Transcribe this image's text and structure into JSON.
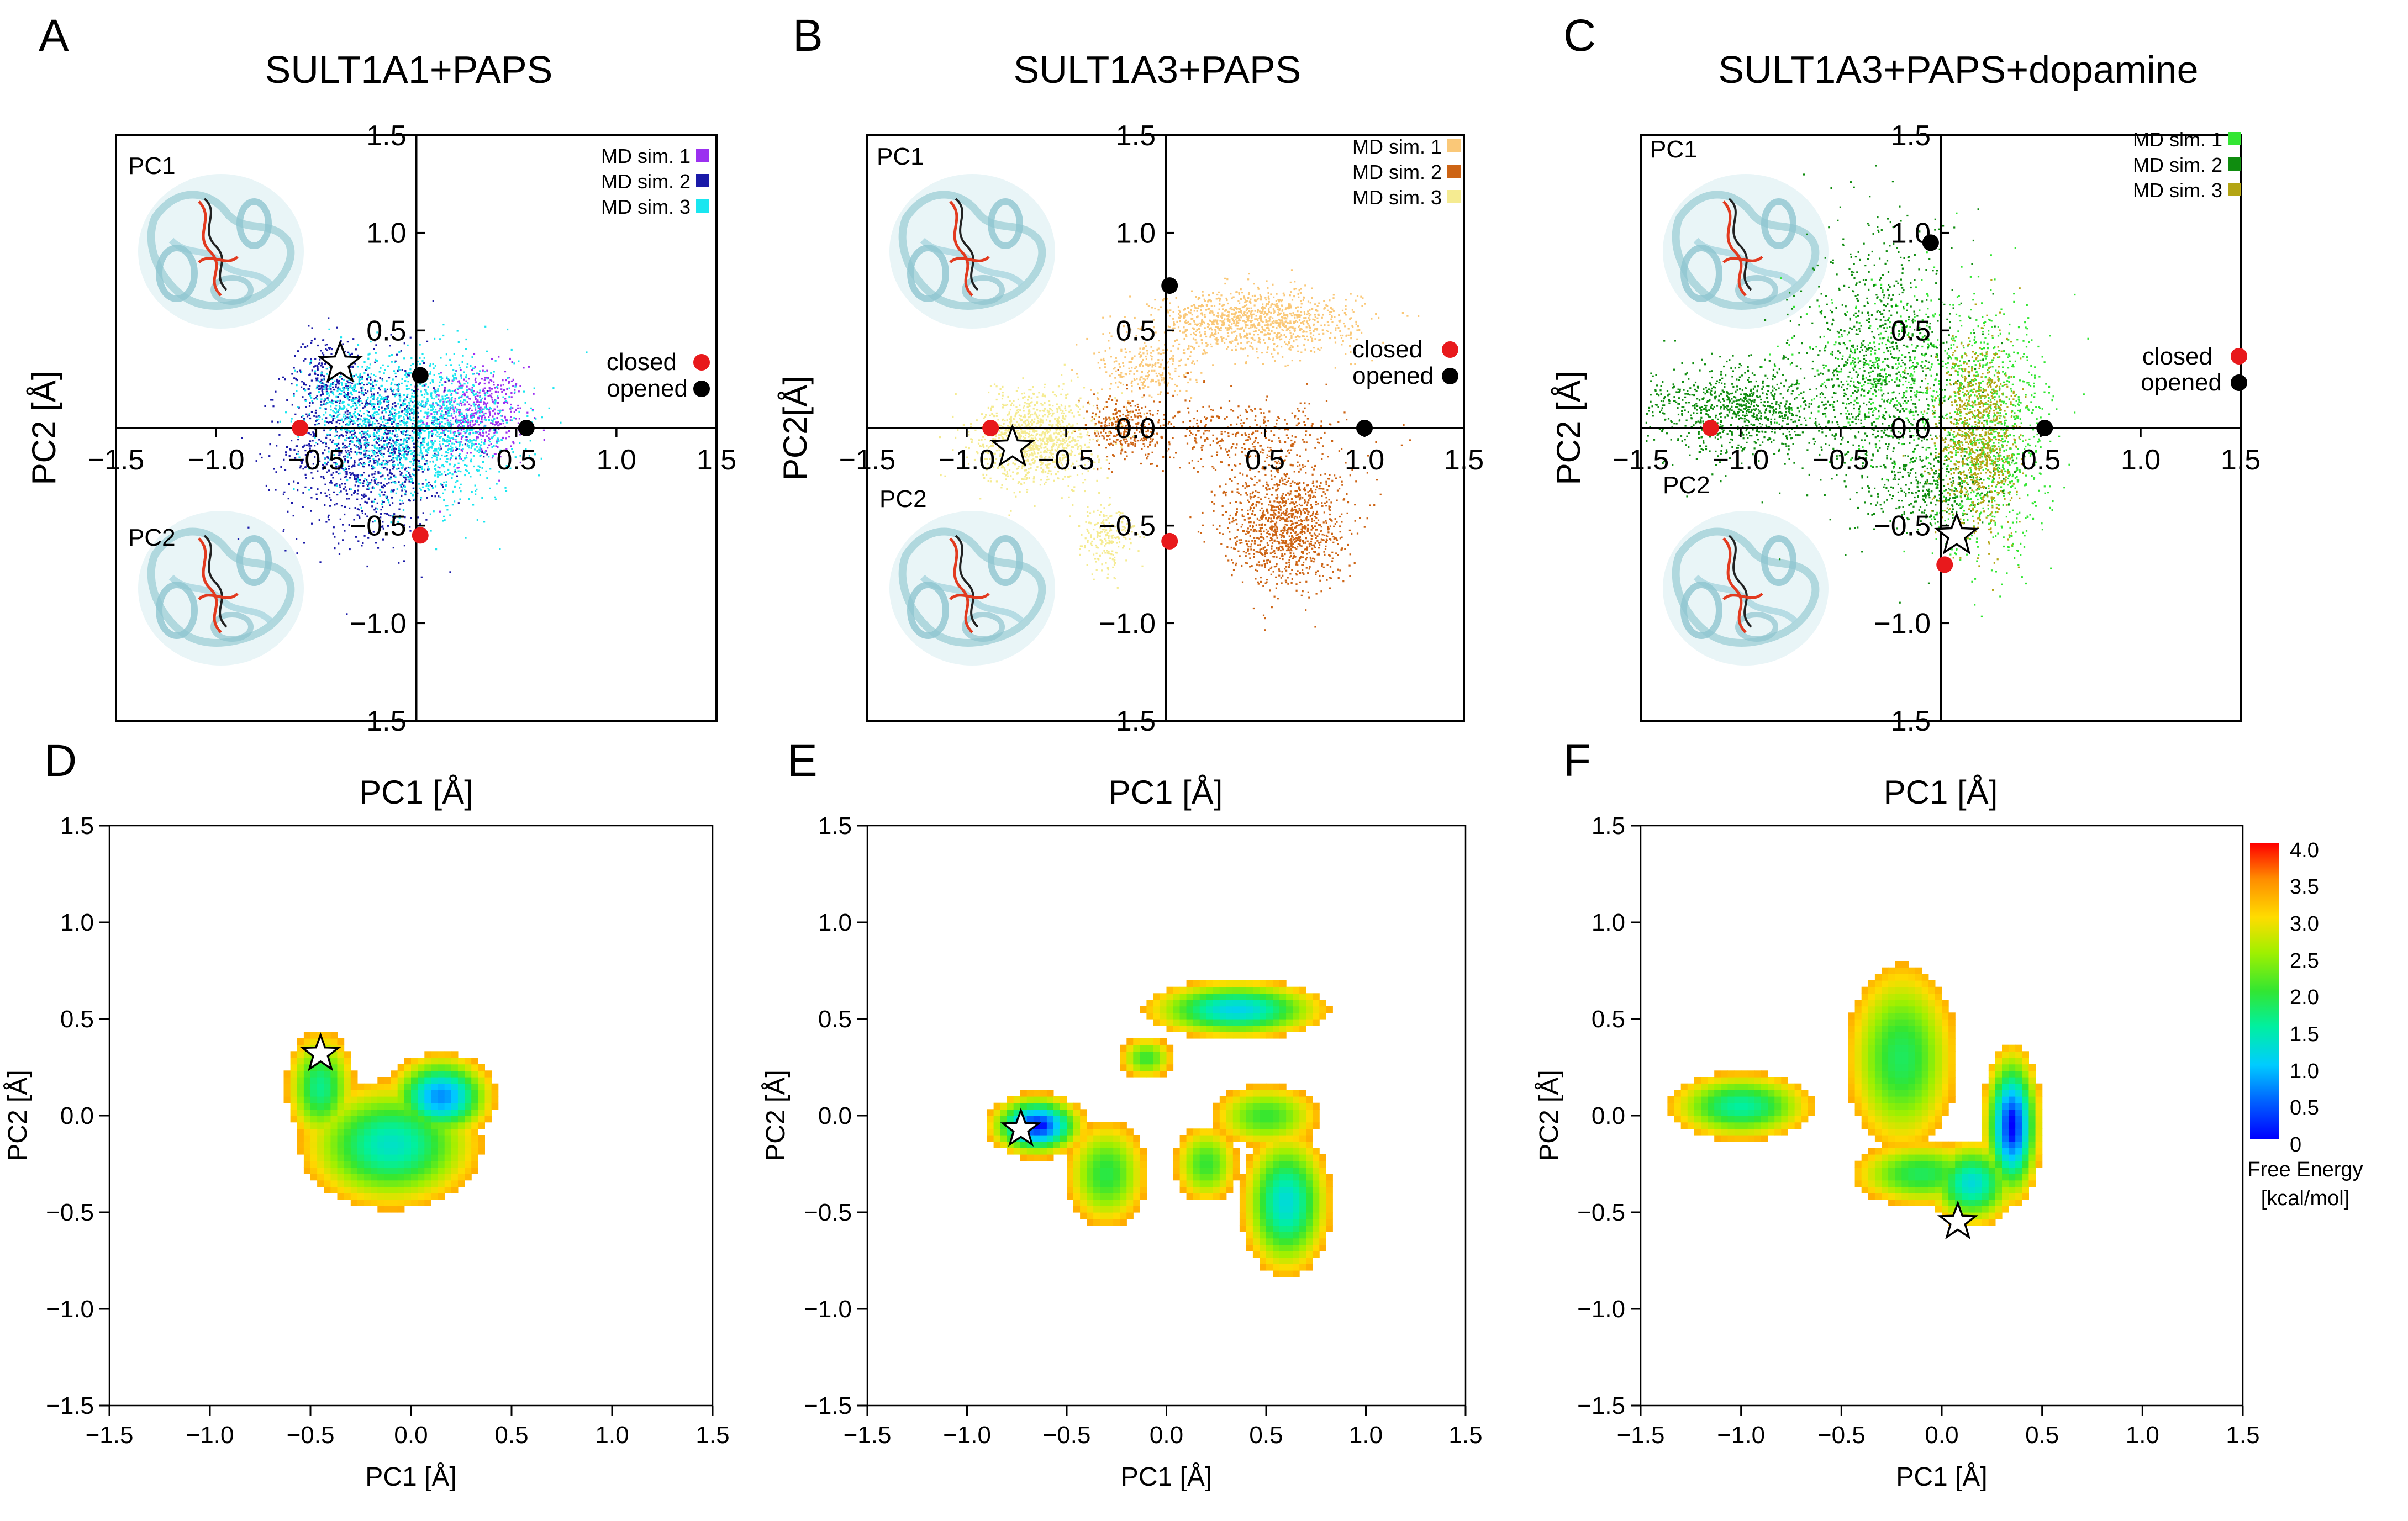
{
  "figure": {
    "panels_top": [
      {
        "letter": "A",
        "title": "SULT1A1+PAPS",
        "inset_top": "PC1",
        "inset_bottom": "PC2",
        "xlabel": "PC1 [Å]",
        "ylabel": "PC2 [Å]"
      },
      {
        "letter": "B",
        "title": "SULT1A3+PAPS",
        "inset_top": "PC1",
        "inset_bottom": "PC2",
        "xlabel": "PC1 [Å]",
        "ylabel": "PC2[Å]"
      },
      {
        "letter": "C",
        "title": "SULT1A3+PAPS+dopamine",
        "inset_top": "PC1",
        "inset_bottom": "PC2",
        "xlabel": "PC1 [Å]",
        "ylabel": "PC2 [Å]"
      }
    ],
    "panels_bottom": [
      {
        "letter": "D",
        "xlabel": "PC1 [Å]",
        "ylabel": "PC2 [Å]"
      },
      {
        "letter": "E",
        "xlabel": "PC1 [Å]",
        "ylabel": "PC2 [Å]"
      },
      {
        "letter": "F",
        "xlabel": "PC1 [Å]",
        "ylabel": "PC2 [Å]"
      }
    ],
    "state_legend": {
      "closed": "closed",
      "opened": "opened",
      "closed_color": "#e8191c",
      "opened_color": "#000000"
    },
    "colorbar": {
      "title_line1": "Free Energy",
      "title_line2": "[kcal/mol]",
      "ticks": [
        "4.0",
        "3.5",
        "3.0",
        "2.5",
        "2.0",
        "1.5",
        "1.0",
        "0.5",
        "0"
      ]
    }
  },
  "chart_data": [
    {
      "panel": "A",
      "type": "scatter",
      "title": "SULT1A1+PAPS",
      "xlabel": "PC1 [Å]",
      "ylabel": "PC2 [Å]",
      "xlim": [
        -1.5,
        1.5
      ],
      "ylim": [
        -1.5,
        1.5
      ],
      "xticks": [
        "−1.5",
        "−1.0",
        "−0.5",
        "0.0",
        "0.5",
        "1.0",
        "1.5"
      ],
      "yticks": [
        "1.5",
        "1.0",
        "0.5",
        "−0.5",
        "−1.0",
        "−1.5"
      ],
      "series": [
        {
          "name": "MD sim. 1",
          "color": "#9b30f0",
          "clusters": [
            {
              "x": 0.3,
              "y": 0.08,
              "sx": 0.12,
              "sy": 0.12,
              "n": 500
            }
          ]
        },
        {
          "name": "MD sim. 2",
          "color": "#1a1aa8",
          "clusters": [
            {
              "x": -0.25,
              "y": -0.1,
              "sx": 0.2,
              "sy": 0.22,
              "n": 1100
            },
            {
              "x": -0.45,
              "y": 0.28,
              "sx": 0.08,
              "sy": 0.1,
              "n": 200
            }
          ]
        },
        {
          "name": "MD sim. 3",
          "color": "#19e6f0",
          "clusters": [
            {
              "x": 0.05,
              "y": 0.0,
              "sx": 0.22,
              "sy": 0.18,
              "n": 1400
            },
            {
              "x": -0.35,
              "y": 0.15,
              "sx": 0.1,
              "sy": 0.12,
              "n": 300
            }
          ]
        }
      ],
      "closed": [
        {
          "x": -0.58,
          "y": 0.0
        },
        {
          "x": 0.02,
          "y": -0.55
        }
      ],
      "opened": [
        {
          "x": 0.02,
          "y": 0.27
        },
        {
          "x": 0.55,
          "y": 0.0
        }
      ],
      "star": {
        "x": -0.38,
        "y": 0.33
      }
    },
    {
      "panel": "B",
      "type": "scatter",
      "title": "SULT1A3+PAPS",
      "xlabel": "PC1 [Å]",
      "ylabel": "PC2[Å]",
      "xlim": [
        -1.5,
        1.5
      ],
      "ylim": [
        -1.5,
        1.5
      ],
      "xticks": [
        "−1.5",
        "−1.0",
        "−0.5",
        "0.0",
        "0.5",
        "1.0",
        "1.5"
      ],
      "yticks": [
        "1.5",
        "1.0",
        "0.5",
        "0.0",
        "−0.5",
        "−1.0",
        "−1.5"
      ],
      "series": [
        {
          "name": "MD sim. 1",
          "color": "#fac878",
          "clusters": [
            {
              "x": 0.45,
              "y": 0.55,
              "sx": 0.25,
              "sy": 0.08,
              "n": 1100
            },
            {
              "x": -0.1,
              "y": 0.3,
              "sx": 0.12,
              "sy": 0.08,
              "n": 250
            }
          ]
        },
        {
          "name": "MD sim. 2",
          "color": "#cd6414",
          "clusters": [
            {
              "x": 0.6,
              "y": -0.5,
              "sx": 0.15,
              "sy": 0.15,
              "n": 1100
            },
            {
              "x": -0.2,
              "y": 0.0,
              "sx": 0.1,
              "sy": 0.08,
              "n": 300
            },
            {
              "x": 0.4,
              "y": -0.05,
              "sx": 0.25,
              "sy": 0.1,
              "n": 400
            }
          ]
        },
        {
          "name": "MD sim. 3",
          "color": "#f5eb91",
          "clusters": [
            {
              "x": -0.65,
              "y": -0.05,
              "sx": 0.15,
              "sy": 0.12,
              "n": 1100
            },
            {
              "x": -0.3,
              "y": -0.55,
              "sx": 0.07,
              "sy": 0.09,
              "n": 200
            }
          ]
        }
      ],
      "closed": [
        {
          "x": -0.88,
          "y": 0.0
        },
        {
          "x": 0.02,
          "y": -0.58
        }
      ],
      "opened": [
        {
          "x": 0.02,
          "y": 0.73
        },
        {
          "x": 1.0,
          "y": 0.0
        }
      ],
      "star": {
        "x": -0.77,
        "y": -0.1
      }
    },
    {
      "panel": "C",
      "type": "scatter",
      "title": "SULT1A3+PAPS+dopamine",
      "xlabel": "PC1 [Å]",
      "ylabel": "PC2 [Å]",
      "xlim": [
        -1.5,
        1.5
      ],
      "ylim": [
        -1.5,
        1.5
      ],
      "xticks": [
        "−1.5",
        "−1.0",
        "−0.5",
        "0.0",
        "0.5",
        "1.0",
        "1.5"
      ],
      "yticks": [
        "1.5",
        "1.0",
        "0.5",
        "0.0",
        "−0.5",
        "−1.0",
        "−1.5"
      ],
      "series": [
        {
          "name": "MD sim. 1",
          "color": "#33e633",
          "clusters": [
            {
              "x": 0.25,
              "y": -0.05,
              "sx": 0.15,
              "sy": 0.3,
              "n": 900
            },
            {
              "x": -0.2,
              "y": 0.3,
              "sx": 0.25,
              "sy": 0.2,
              "n": 500
            }
          ]
        },
        {
          "name": "MD sim. 2",
          "color": "#0f8c0f",
          "clusters": [
            {
              "x": -1.0,
              "y": 0.1,
              "sx": 0.25,
              "sy": 0.12,
              "n": 900
            },
            {
              "x": -0.3,
              "y": 0.3,
              "sx": 0.2,
              "sy": 0.35,
              "n": 900
            },
            {
              "x": -0.05,
              "y": -0.3,
              "sx": 0.15,
              "sy": 0.1,
              "n": 300
            }
          ]
        },
        {
          "name": "MD sim. 3",
          "color": "#b4a514",
          "clusters": [
            {
              "x": 0.18,
              "y": -0.05,
              "sx": 0.1,
              "sy": 0.25,
              "n": 900
            }
          ]
        }
      ],
      "closed": [
        {
          "x": -1.15,
          "y": 0.0
        },
        {
          "x": 0.02,
          "y": -0.7
        }
      ],
      "opened": [
        {
          "x": -0.05,
          "y": 0.95
        },
        {
          "x": 0.52,
          "y": 0.0
        }
      ],
      "star": {
        "x": 0.08,
        "y": -0.55
      }
    },
    {
      "panel": "D",
      "type": "heatmap",
      "xlabel": "PC1 [Å]",
      "ylabel": "PC2 [Å]",
      "xlim": [
        -1.5,
        1.5
      ],
      "ylim": [
        -1.5,
        1.5
      ],
      "xticks": [
        "−1.5",
        "−1.0",
        "−0.5",
        "0.0",
        "0.5",
        "1.0",
        "1.5"
      ],
      "yticks": [
        "1.5",
        "1.0",
        "0.5",
        "0.0",
        "−0.5",
        "−1.0",
        "−1.5"
      ],
      "colorbar_range": [
        0,
        4.0
      ],
      "wells": [
        {
          "x": 0.15,
          "y": 0.1,
          "sx": 0.17,
          "sy": 0.14,
          "depth": 3.5
        },
        {
          "x": -0.1,
          "y": -0.15,
          "sx": 0.3,
          "sy": 0.22,
          "depth": 2.9
        },
        {
          "x": -0.45,
          "y": 0.15,
          "sx": 0.12,
          "sy": 0.2,
          "depth": 2.6
        }
      ],
      "star": {
        "x": -0.45,
        "y": 0.32
      }
    },
    {
      "panel": "E",
      "type": "heatmap",
      "xlabel": "PC1 [Å]",
      "ylabel": "PC2 [Å]",
      "xlim": [
        -1.5,
        1.5
      ],
      "ylim": [
        -1.5,
        1.5
      ],
      "xticks": [
        "−1.5",
        "−1.0",
        "−0.5",
        "0.0",
        "0.5",
        "1.0",
        "1.5"
      ],
      "yticks": [
        "1.5",
        "1.0",
        "0.5",
        "0.0",
        "−0.5",
        "−1.0",
        "−1.5"
      ],
      "colorbar_range": [
        0,
        4.0
      ],
      "wells": [
        {
          "x": -0.65,
          "y": -0.05,
          "sx": 0.15,
          "sy": 0.1,
          "depth": 4.0
        },
        {
          "x": 0.35,
          "y": 0.55,
          "sx": 0.3,
          "sy": 0.1,
          "depth": 3.1
        },
        {
          "x": 0.6,
          "y": -0.45,
          "sx": 0.15,
          "sy": 0.25,
          "depth": 3.0
        },
        {
          "x": -0.3,
          "y": -0.3,
          "sx": 0.15,
          "sy": 0.2,
          "depth": 2.3
        },
        {
          "x": -0.1,
          "y": 0.3,
          "sx": 0.1,
          "sy": 0.08,
          "depth": 2.2
        },
        {
          "x": 0.5,
          "y": 0.0,
          "sx": 0.2,
          "sy": 0.12,
          "depth": 2.2
        },
        {
          "x": 0.2,
          "y": -0.25,
          "sx": 0.12,
          "sy": 0.15,
          "depth": 2.2
        }
      ],
      "star": {
        "x": -0.73,
        "y": -0.07
      }
    },
    {
      "panel": "F",
      "type": "heatmap",
      "xlabel": "PC1 [Å]",
      "ylabel": "PC2 [Å]",
      "xlim": [
        -1.5,
        1.5
      ],
      "ylim": [
        -1.5,
        1.5
      ],
      "xticks": [
        "−1.5",
        "−1.0",
        "−0.5",
        "0.0",
        "0.5",
        "1.0",
        "1.5"
      ],
      "yticks": [
        "1.5",
        "1.0",
        "0.5",
        "0.0",
        "−0.5",
        "−1.0",
        "−1.5"
      ],
      "colorbar_range": [
        0,
        4.0
      ],
      "wells": [
        {
          "x": 0.35,
          "y": -0.05,
          "sx": 0.09,
          "sy": 0.25,
          "depth": 4.0
        },
        {
          "x": 0.15,
          "y": -0.35,
          "sx": 0.15,
          "sy": 0.15,
          "depth": 3.0
        },
        {
          "x": -1.0,
          "y": 0.05,
          "sx": 0.25,
          "sy": 0.12,
          "depth": 2.7
        },
        {
          "x": -0.2,
          "y": 0.3,
          "sx": 0.2,
          "sy": 0.35,
          "depth": 2.4
        },
        {
          "x": -0.1,
          "y": -0.3,
          "sx": 0.25,
          "sy": 0.12,
          "depth": 2.4
        }
      ],
      "star": {
        "x": 0.08,
        "y": -0.55
      }
    }
  ]
}
